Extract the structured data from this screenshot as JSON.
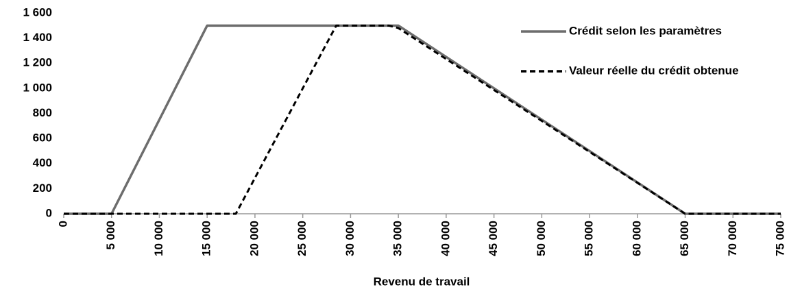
{
  "chart_data": {
    "type": "line",
    "xlabel": "Revenu de travail",
    "xlim": [
      0,
      75000
    ],
    "xticks": [
      0,
      {
        "value": 5000,
        "label": "5 000"
      },
      {
        "value": 10000,
        "label": "10 000"
      },
      {
        "value": 15000,
        "label": "15 000"
      },
      {
        "value": 20000,
        "label": "20 000"
      },
      {
        "value": 25000,
        "label": "25 000"
      },
      {
        "value": 30000,
        "label": "30 000"
      },
      {
        "value": 35000,
        "label": "35 000"
      },
      {
        "value": 40000,
        "label": "40 000"
      },
      {
        "value": 45000,
        "label": "45 000"
      },
      {
        "value": 50000,
        "label": "50 000"
      },
      {
        "value": 55000,
        "label": "55 000"
      },
      {
        "value": 60000,
        "label": "60 000"
      },
      {
        "value": 65000,
        "label": "65 000"
      },
      {
        "value": 70000,
        "label": "70 000"
      },
      {
        "value": 75000,
        "label": "75 000"
      }
    ],
    "ylim": [
      0,
      1600
    ],
    "yticks": [
      0,
      200,
      400,
      600,
      800,
      {
        "value": 1000,
        "label": "1 000"
      },
      {
        "value": 1200,
        "label": "1 200"
      },
      {
        "value": 1400,
        "label": "1 400"
      },
      {
        "value": 1600,
        "label": "1 600"
      }
    ],
    "grid": false,
    "legend": "upper right",
    "series": [
      {
        "name": "Crédit selon les paramètres",
        "color": "#6d6d6d",
        "dash": false,
        "x": [
          0,
          5000,
          15000,
          35000,
          65000,
          75000
        ],
        "values": [
          0,
          0,
          1500,
          1500,
          0,
          0
        ]
      },
      {
        "name": "Valeur réelle du crédit obtenue",
        "color": "#000000",
        "dash": true,
        "x": [
          0,
          18000,
          28500,
          34000,
          35000,
          65000,
          75000
        ],
        "values": [
          0,
          0,
          1500,
          1500,
          1480,
          0,
          0
        ]
      }
    ]
  }
}
